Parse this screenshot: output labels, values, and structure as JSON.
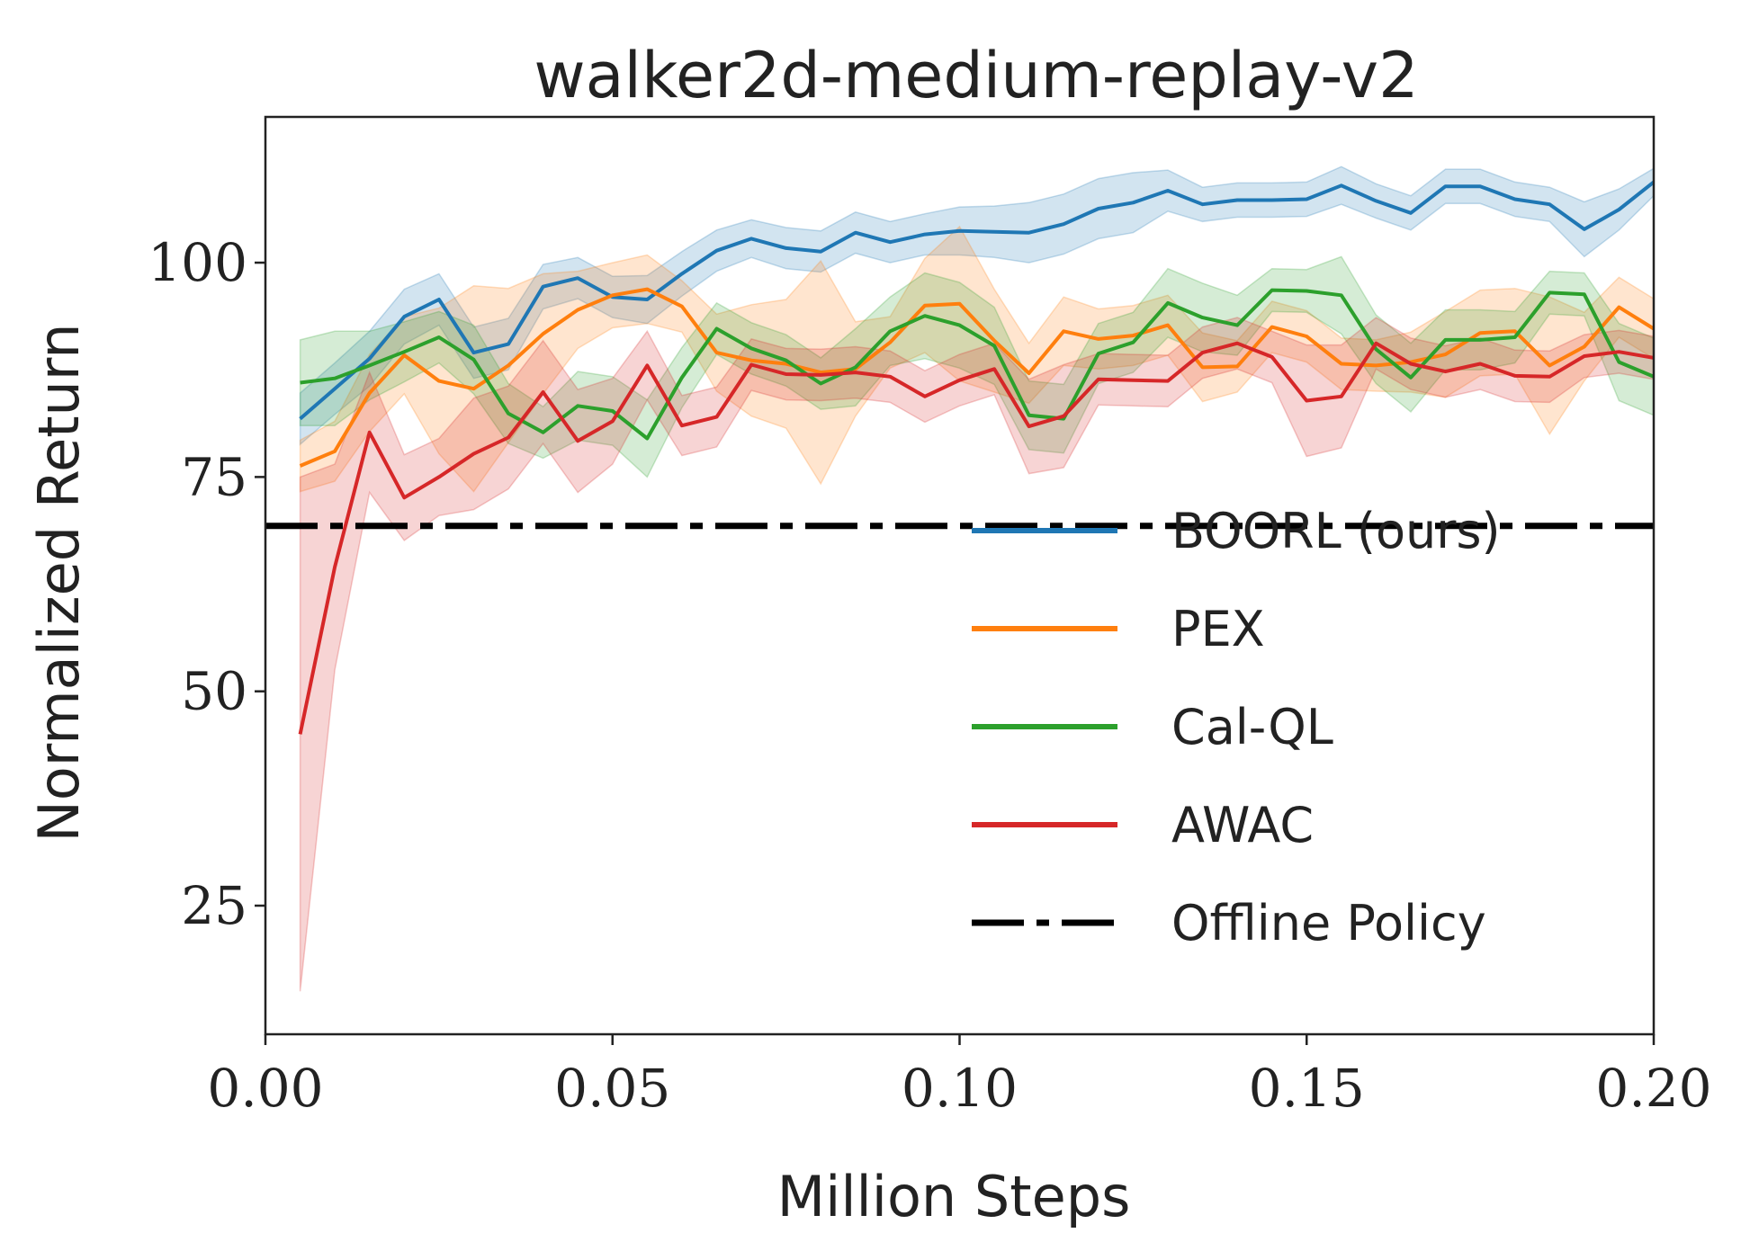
{
  "chart_data": {
    "type": "line",
    "title": "walker2d-medium-replay-v2",
    "xlabel": "Million Steps",
    "ylabel": "Normalized Return",
    "xlim": [
      0,
      0.2
    ],
    "ylim": [
      10,
      117
    ],
    "xticks": [
      0,
      0.05,
      0.1,
      0.15,
      0.2
    ],
    "xtick_labels": [
      "0.00",
      "0.05",
      "0.10",
      "0.15",
      "0.20"
    ],
    "yticks": [
      25,
      50,
      75,
      100
    ],
    "ytick_labels": [
      "25",
      "50",
      "75",
      "100"
    ],
    "grid": false,
    "legend_position": "center-right",
    "x": [
      0.005,
      0.01,
      0.015,
      0.02,
      0.025,
      0.03,
      0.035,
      0.04,
      0.045,
      0.05,
      0.055,
      0.06,
      0.065,
      0.07,
      0.075,
      0.08,
      0.085,
      0.09,
      0.095,
      0.1,
      0.105,
      0.11,
      0.115,
      0.12,
      0.125,
      0.13,
      0.135,
      0.14,
      0.145,
      0.15,
      0.155,
      0.16,
      0.165,
      0.17,
      0.175,
      0.18,
      0.185,
      0.19,
      0.195,
      0.2
    ],
    "series": [
      {
        "name": "BOORL (ours)",
        "color": "#1f77b4",
        "style": "solid",
        "values": [
          81.8,
          85.3,
          88.8,
          93.7,
          95.7,
          89.5,
          90.5,
          97.2,
          98.2,
          96.0,
          95.7,
          98.7,
          101.4,
          102.8,
          101.7,
          101.3,
          103.5,
          102.4,
          103.3,
          103.7,
          103.6,
          103.5,
          104.5,
          106.3,
          107.0,
          108.4,
          106.8,
          107.3,
          107.3,
          107.4,
          109.0,
          107.2,
          105.8,
          108.9,
          108.9,
          107.4,
          106.8,
          103.9,
          106.2,
          109.4
        ],
        "band": [
          3.0,
          3.0,
          3.2,
          3.2,
          3.0,
          3.0,
          3.0,
          2.6,
          2.4,
          2.4,
          2.8,
          2.6,
          2.4,
          2.2,
          2.4,
          2.4,
          2.4,
          2.4,
          2.4,
          2.8,
          3.0,
          3.5,
          3.5,
          3.5,
          3.5,
          2.4,
          2.0,
          2.0,
          2.0,
          2.0,
          2.2,
          2.0,
          2.0,
          2.0,
          2.0,
          2.0,
          2.0,
          3.2,
          2.4,
          1.6
        ]
      },
      {
        "name": "PEX",
        "color": "#ff7f0e",
        "style": "solid",
        "values": [
          76.3,
          78.0,
          84.8,
          89.2,
          86.2,
          85.3,
          88.0,
          91.7,
          94.5,
          96.2,
          96.9,
          94.9,
          89.5,
          88.6,
          88.2,
          87.2,
          87.6,
          90.7,
          95.0,
          95.2,
          90.9,
          87.1,
          92.0,
          91.1,
          91.5,
          92.7,
          87.8,
          87.9,
          92.5,
          91.4,
          88.2,
          88.0,
          88.4,
          89.3,
          91.8,
          92.0,
          88.0,
          90.2,
          94.8,
          92.3
        ],
        "band": [
          3.0,
          3.5,
          4.5,
          4.5,
          8.5,
          12.0,
          9.0,
          7.0,
          4.5,
          3.8,
          4.0,
          3.0,
          4.5,
          6.5,
          7.5,
          13.0,
          5.5,
          3.0,
          5.5,
          9.0,
          6.0,
          3.5,
          4.0,
          3.5,
          3.5,
          3.5,
          4.0,
          3.0,
          3.0,
          3.0,
          3.0,
          3.0,
          3.5,
          5.0,
          5.0,
          5.0,
          8.0,
          4.0,
          3.5,
          3.5
        ]
      },
      {
        "name": "Cal-QL",
        "color": "#2ca02c",
        "style": "solid",
        "values": [
          86.0,
          86.5,
          88.0,
          89.6,
          91.3,
          88.7,
          82.4,
          80.2,
          83.3,
          82.7,
          79.5,
          86.6,
          92.3,
          90.0,
          88.6,
          85.9,
          87.8,
          92.0,
          93.8,
          92.7,
          90.3,
          82.2,
          81.8,
          89.4,
          90.7,
          95.3,
          93.6,
          92.7,
          96.8,
          96.7,
          96.2,
          89.9,
          86.6,
          91.0,
          91.0,
          91.3,
          96.5,
          96.3,
          88.4,
          86.7
        ],
        "band": [
          5.0,
          5.5,
          4.0,
          3.5,
          3.0,
          4.0,
          3.5,
          3.0,
          4.0,
          4.0,
          4.5,
          3.5,
          3.0,
          3.0,
          3.0,
          3.0,
          4.5,
          4.0,
          5.0,
          5.0,
          4.5,
          4.0,
          4.0,
          3.5,
          3.5,
          4.0,
          4.0,
          3.5,
          2.5,
          2.5,
          4.5,
          4.0,
          4.0,
          3.5,
          3.5,
          3.0,
          2.5,
          2.5,
          4.5,
          4.5
        ]
      },
      {
        "name": "AWAC",
        "color": "#d62728",
        "style": "solid",
        "values": [
          45.0,
          64.5,
          80.2,
          72.6,
          75.0,
          77.7,
          79.6,
          84.9,
          79.2,
          81.5,
          88.0,
          81.0,
          82.0,
          88.1,
          87.0,
          86.9,
          87.2,
          86.7,
          84.4,
          86.3,
          87.6,
          80.9,
          82.1,
          86.4,
          86.3,
          86.2,
          89.5,
          90.6,
          89.0,
          83.9,
          84.4,
          90.6,
          88.2,
          87.3,
          88.2,
          86.8,
          86.7,
          89.1,
          89.6,
          88.9
        ],
        "band": [
          30.0,
          12.0,
          7.0,
          5.0,
          4.5,
          6.5,
          6.0,
          6.0,
          6.0,
          5.0,
          4.0,
          3.5,
          3.5,
          3.0,
          3.0,
          3.0,
          3.0,
          3.0,
          3.0,
          3.0,
          3.0,
          5.5,
          6.0,
          3.0,
          3.0,
          3.0,
          3.0,
          3.0,
          3.0,
          6.5,
          6.0,
          3.0,
          3.0,
          3.0,
          3.0,
          3.0,
          3.0,
          2.5,
          2.5,
          2.5
        ]
      },
      {
        "name": "Offline Policy",
        "color": "#000000",
        "style": "dashdot",
        "constant": 69.3
      }
    ]
  }
}
